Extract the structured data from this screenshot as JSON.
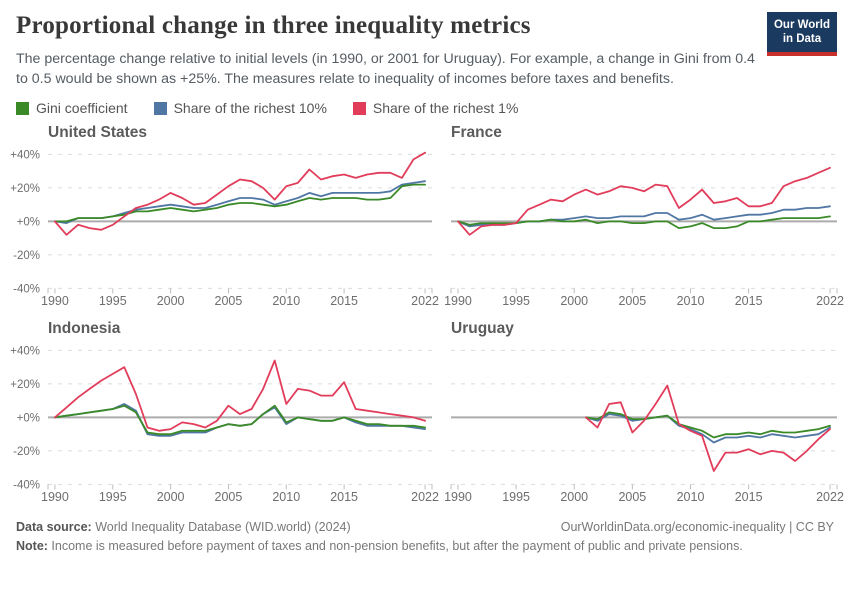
{
  "header": {
    "title": "Proportional change in three inequality metrics",
    "subtitle": "The percentage change relative to initial levels (in 1990, or 2001 for Uruguay). For example, a change in Gini from 0.4 to 0.5 would be shown as +25%. The measures relate to inequality of incomes before taxes and benefits.",
    "logo": {
      "line1": "Our World",
      "line2": "in Data"
    }
  },
  "legend": {
    "items": [
      {
        "key": "gini",
        "label": "Gini coefficient"
      },
      {
        "key": "top10",
        "label": "Share of the richest 10%"
      },
      {
        "key": "top1",
        "label": "Share of the richest 1%"
      }
    ]
  },
  "colors": {
    "gini": "#3A8A28",
    "top10": "#5077A4",
    "top1": "#E13D5B",
    "grid": "#DBDBDB",
    "zero_line": "#ABABAB",
    "tick": "#BDBDBD",
    "axis_text": "#6E6E6E",
    "logo_bg": "#1A3A5F",
    "logo_red": "#C7302B"
  },
  "chart_data": [
    {
      "type": "line",
      "title": "United States",
      "x_start": 1990,
      "xlim": [
        1989.4,
        2022.6
      ],
      "ylim": [
        -40,
        40
      ],
      "x_ticks": [
        1990,
        1995,
        2000,
        2005,
        2010,
        2015,
        2022
      ],
      "y_ticks": [
        {
          "label": "+40%",
          "value": 40
        },
        {
          "label": "+20%",
          "value": 20
        },
        {
          "label": "+0%",
          "value": 0
        },
        {
          "label": "-20%",
          "value": -20
        },
        {
          "label": "-40%",
          "value": -40
        }
      ],
      "series": [
        {
          "name": "Gini coefficient",
          "key": "gini",
          "values": [
            0,
            0,
            2,
            2,
            2,
            3,
            4,
            6,
            6,
            7,
            8,
            7,
            6,
            7,
            8,
            10,
            11,
            11,
            10,
            9,
            10,
            12,
            14,
            13,
            14,
            14,
            14,
            13,
            13,
            14,
            21,
            22,
            22
          ]
        },
        {
          "name": "Share of the richest 10%",
          "key": "top10",
          "values": [
            0,
            -1,
            2,
            2,
            2,
            3,
            5,
            7,
            8,
            9,
            10,
            9,
            8,
            8,
            10,
            12,
            14,
            14,
            13,
            10,
            12,
            14,
            17,
            15,
            17,
            17,
            17,
            17,
            17,
            18,
            22,
            23,
            24
          ]
        },
        {
          "name": "Share of the richest 1%",
          "key": "top1",
          "values": [
            0,
            -8,
            -2,
            -4,
            -5,
            -2,
            3,
            8,
            10,
            13,
            17,
            14,
            10,
            11,
            16,
            21,
            25,
            24,
            20,
            13,
            21,
            23,
            31,
            25,
            27,
            28,
            26,
            28,
            29,
            29,
            26,
            37,
            41
          ]
        }
      ]
    },
    {
      "type": "line",
      "title": "France",
      "x_start": 1990,
      "xlim": [
        1989.4,
        2022.6
      ],
      "ylim": [
        -40,
        40
      ],
      "x_ticks": [
        1990,
        1995,
        2000,
        2005,
        2010,
        2015,
        2022
      ],
      "y_ticks": [
        {
          "label": "+40%",
          "value": 40
        },
        {
          "label": "+20%",
          "value": 20
        },
        {
          "label": "+0%",
          "value": 0
        },
        {
          "label": "-20%",
          "value": -20
        },
        {
          "label": "-40%",
          "value": -40
        }
      ],
      "series": [
        {
          "name": "Gini coefficient",
          "key": "gini",
          "values": [
            0,
            -2,
            -1,
            -1,
            -1,
            -1,
            0,
            0,
            1,
            0,
            0,
            1,
            -1,
            0,
            0,
            -1,
            -1,
            0,
            0,
            -4,
            -3,
            -1,
            -4,
            -4,
            -3,
            0,
            0,
            1,
            2,
            2,
            2,
            2,
            3
          ]
        },
        {
          "name": "Share of the richest 10%",
          "key": "top10",
          "values": [
            0,
            -3,
            -2,
            -2,
            -2,
            -1,
            0,
            0,
            1,
            1,
            2,
            3,
            2,
            2,
            3,
            3,
            3,
            5,
            5,
            1,
            2,
            4,
            1,
            2,
            3,
            4,
            4,
            5,
            7,
            7,
            8,
            8,
            9
          ]
        },
        {
          "name": "Share of the richest 1%",
          "key": "top1",
          "values": [
            0,
            -8,
            -3,
            -2,
            -2,
            -1,
            7,
            10,
            13,
            12,
            16,
            19,
            16,
            18,
            21,
            20,
            18,
            22,
            21,
            8,
            13,
            19,
            11,
            12,
            14,
            9,
            9,
            11,
            21,
            24,
            26,
            29,
            32
          ]
        }
      ]
    },
    {
      "type": "line",
      "title": "Indonesia",
      "x_start": 1990,
      "xlim": [
        1989.4,
        2022.6
      ],
      "ylim": [
        -40,
        40
      ],
      "x_ticks": [
        1990,
        1995,
        2000,
        2005,
        2010,
        2015,
        2022
      ],
      "y_ticks": [
        {
          "label": "+40%",
          "value": 40
        },
        {
          "label": "+20%",
          "value": 20
        },
        {
          "label": "+0%",
          "value": 0
        },
        {
          "label": "-20%",
          "value": -20
        },
        {
          "label": "-40%",
          "value": -40
        }
      ],
      "series": [
        {
          "name": "Gini coefficient",
          "key": "gini",
          "values": [
            0,
            1,
            2,
            3,
            4,
            5,
            7,
            3,
            -9,
            -10,
            -10,
            -8,
            -8,
            -8,
            -6,
            -4,
            -5,
            -4,
            2,
            7,
            -3,
            0,
            -1,
            -2,
            -2,
            0,
            -2,
            -4,
            -4,
            -5,
            -5,
            -5,
            -6
          ]
        },
        {
          "name": "Share of the richest 10%",
          "key": "top10",
          "values": [
            0,
            1,
            2,
            3,
            4,
            5,
            8,
            4,
            -10,
            -11,
            -11,
            -9,
            -9,
            -9,
            -6,
            -4,
            -5,
            -4,
            2,
            6,
            -4,
            0,
            -1,
            -2,
            -2,
            0,
            -3,
            -5,
            -5,
            -5,
            -5,
            -6,
            -7
          ]
        },
        {
          "name": "Share of the richest 1%",
          "key": "top1",
          "values": [
            0,
            6,
            12,
            17,
            22,
            26,
            30,
            14,
            -6,
            -8,
            -7,
            -3,
            -4,
            -6,
            -2,
            7,
            2,
            5,
            17,
            34,
            8,
            17,
            16,
            13,
            13,
            21,
            5,
            4,
            3,
            2,
            1,
            0,
            -2
          ]
        }
      ]
    },
    {
      "type": "line",
      "title": "Uruguay",
      "x_start": 2001,
      "xlim": [
        1989.4,
        2022.6
      ],
      "ylim": [
        -40,
        40
      ],
      "x_ticks": [
        1990,
        1995,
        2000,
        2005,
        2010,
        2015,
        2022
      ],
      "y_ticks": [
        {
          "label": "+40%",
          "value": 40
        },
        {
          "label": "+20%",
          "value": 20
        },
        {
          "label": "+0%",
          "value": 0
        },
        {
          "label": "-20%",
          "value": -20
        },
        {
          "label": "-40%",
          "value": -40
        }
      ],
      "series": [
        {
          "name": "Gini coefficient",
          "key": "gini",
          "values": [
            0,
            -1,
            3,
            2,
            -1,
            -1,
            0,
            1,
            -4,
            -6,
            -8,
            -12,
            -10,
            -10,
            -9,
            -10,
            -8,
            -9,
            -9,
            -8,
            -7,
            -5
          ]
        },
        {
          "name": "Share of the richest 10%",
          "key": "top10",
          "values": [
            0,
            -2,
            2,
            1,
            -2,
            -1,
            0,
            1,
            -5,
            -7,
            -10,
            -15,
            -12,
            -12,
            -11,
            -12,
            -10,
            -11,
            -12,
            -11,
            -10,
            -6
          ]
        },
        {
          "name": "Share of the richest 1%",
          "key": "top1",
          "values": [
            0,
            -6,
            8,
            9,
            -9,
            -2,
            8,
            19,
            -4,
            -8,
            -11,
            -32,
            -21,
            -21,
            -19,
            -22,
            -20,
            -21,
            -26,
            -20,
            -13,
            -7
          ]
        }
      ]
    }
  ],
  "footer": {
    "datasource_label": "Data source:",
    "datasource": " World Inequality Database (WID.world) (2024)",
    "link": "OurWorldinData.org/economic-inequality",
    "separator": " | ",
    "license": "CC BY",
    "note_label": "Note:",
    "note": " Income is measured before payment of taxes and non-pension benefits, but after the payment of public and private pensions."
  }
}
